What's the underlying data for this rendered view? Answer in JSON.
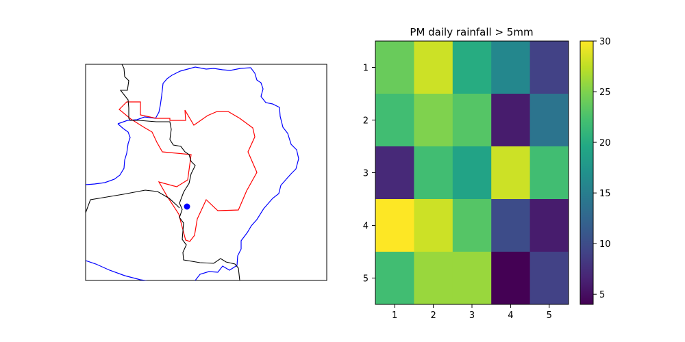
{
  "chart_data": [
    {
      "type": "map",
      "title": "",
      "features": [
        {
          "name": "river-boundary",
          "color": "#0000ff"
        },
        {
          "name": "region-outline",
          "color": "#ff0000"
        },
        {
          "name": "country-borders",
          "color": "#000000"
        }
      ],
      "marker": {
        "color": "#0000ff",
        "shape": "circle"
      }
    },
    {
      "type": "heatmap",
      "title": "PM daily rainfall > 5mm",
      "x_categories": [
        "1",
        "2",
        "3",
        "4",
        "5"
      ],
      "y_categories": [
        "1",
        "2",
        "3",
        "4",
        "5"
      ],
      "values": [
        [
          24,
          28,
          20,
          16,
          9
        ],
        [
          22,
          25,
          23,
          6,
          14
        ],
        [
          7,
          22,
          19,
          28,
          22
        ],
        [
          30,
          28,
          23,
          10,
          6
        ],
        [
          22,
          26,
          26,
          4,
          9
        ]
      ],
      "colormap": "viridis",
      "colorbar": {
        "vmin": 4,
        "vmax": 30,
        "ticks": [
          5,
          10,
          15,
          20,
          25,
          30
        ]
      },
      "xlabel": "",
      "ylabel": ""
    }
  ]
}
